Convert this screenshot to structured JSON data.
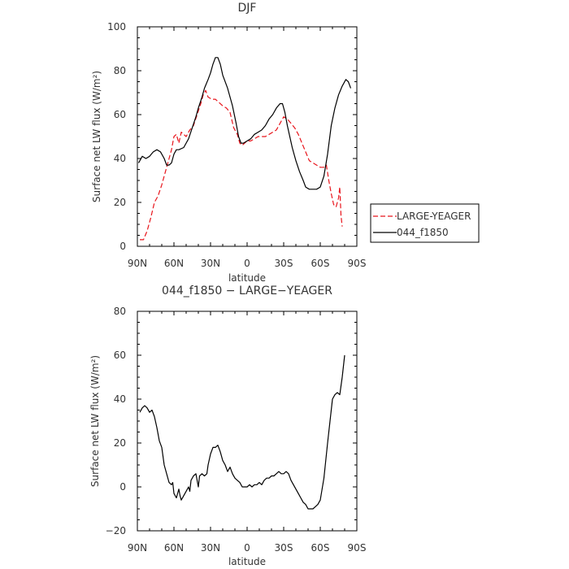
{
  "chart_data": [
    {
      "type": "line",
      "title": "DJF",
      "xlabel": "latitude",
      "ylabel": "Surface net LW flux (W/m²)",
      "ylim": [
        0,
        100
      ],
      "yticks": [
        "0",
        "20",
        "40",
        "60",
        "80",
        "100"
      ],
      "xlim": [
        90,
        -90
      ],
      "xticks": [
        {
          "v": 90,
          "label": "90N"
        },
        {
          "v": 60,
          "label": "60N"
        },
        {
          "v": 30,
          "label": "30N"
        },
        {
          "v": 0,
          "label": "0"
        },
        {
          "v": -30,
          "label": "30S"
        },
        {
          "v": -60,
          "label": "60S"
        },
        {
          "v": -90,
          "label": "90S"
        }
      ],
      "legend": {
        "placement": "right-outside"
      },
      "series": [
        {
          "name": "LARGE-YEAGER",
          "color": "#e8141b",
          "dash": "dashed",
          "points": [
            [
              88,
              3
            ],
            [
              85,
              3
            ],
            [
              82,
              7
            ],
            [
              79,
              13
            ],
            [
              76,
              20
            ],
            [
              73,
              23
            ],
            [
              70,
              28
            ],
            [
              67,
              34
            ],
            [
              64,
              40
            ],
            [
              62,
              44
            ],
            [
              60,
              50
            ],
            [
              58,
              51
            ],
            [
              56,
              47
            ],
            [
              54,
              52
            ],
            [
              52,
              51
            ],
            [
              50,
              50
            ],
            [
              47,
              53
            ],
            [
              44,
              55
            ],
            [
              41,
              60
            ],
            [
              38,
              65
            ],
            [
              36,
              69
            ],
            [
              34,
              71
            ],
            [
              32,
              68
            ],
            [
              29,
              67
            ],
            [
              26,
              67
            ],
            [
              24,
              66
            ],
            [
              20,
              64
            ],
            [
              17,
              63
            ],
            [
              14,
              61
            ],
            [
              11,
              54
            ],
            [
              8,
              51
            ],
            [
              6,
              47
            ],
            [
              4,
              46
            ],
            [
              2,
              47
            ],
            [
              0,
              48
            ],
            [
              -3,
              48
            ],
            [
              -6,
              49
            ],
            [
              -9,
              50
            ],
            [
              -12,
              50
            ],
            [
              -15,
              50
            ],
            [
              -18,
              51
            ],
            [
              -21,
              52
            ],
            [
              -24,
              53
            ],
            [
              -27,
              56
            ],
            [
              -30,
              59
            ],
            [
              -33,
              58
            ],
            [
              -36,
              56
            ],
            [
              -39,
              54
            ],
            [
              -42,
              51
            ],
            [
              -45,
              47
            ],
            [
              -48,
              43
            ],
            [
              -51,
              39
            ],
            [
              -54,
              38
            ],
            [
              -57,
              37
            ],
            [
              -60,
              36
            ],
            [
              -63,
              36
            ],
            [
              -65,
              37
            ],
            [
              -67,
              30
            ],
            [
              -69,
              24
            ],
            [
              -71,
              19
            ],
            [
              -73,
              18
            ],
            [
              -75,
              22
            ],
            [
              -76,
              27
            ],
            [
              -77,
              14
            ],
            [
              -78,
              9
            ]
          ]
        },
        {
          "name": "044_f1850",
          "color": "#000000",
          "dash": "solid",
          "points": [
            [
              89,
              38
            ],
            [
              86,
              41
            ],
            [
              83,
              40
            ],
            [
              80,
              41
            ],
            [
              77,
              43
            ],
            [
              74,
              44
            ],
            [
              71,
              43
            ],
            [
              68,
              40
            ],
            [
              66,
              37
            ],
            [
              64,
              37
            ],
            [
              62,
              38
            ],
            [
              60,
              42
            ],
            [
              58,
              44
            ],
            [
              56,
              44
            ],
            [
              52,
              45
            ],
            [
              48,
              49
            ],
            [
              45,
              54
            ],
            [
              42,
              59
            ],
            [
              40,
              63
            ],
            [
              37,
              68
            ],
            [
              35,
              72
            ],
            [
              32,
              76
            ],
            [
              30,
              79
            ],
            [
              28,
              83
            ],
            [
              26,
              86
            ],
            [
              24,
              86
            ],
            [
              22,
              83
            ],
            [
              20,
              78
            ],
            [
              16,
              72
            ],
            [
              12,
              64
            ],
            [
              9,
              56
            ],
            [
              7,
              50
            ],
            [
              5,
              47
            ],
            [
              3,
              47
            ],
            [
              0,
              48
            ],
            [
              -3,
              49
            ],
            [
              -6,
              51
            ],
            [
              -9,
              52
            ],
            [
              -12,
              53
            ],
            [
              -15,
              55
            ],
            [
              -18,
              58
            ],
            [
              -21,
              60
            ],
            [
              -24,
              63
            ],
            [
              -27,
              65
            ],
            [
              -29,
              65
            ],
            [
              -31,
              61
            ],
            [
              -33,
              55
            ],
            [
              -35,
              50
            ],
            [
              -37,
              45
            ],
            [
              -40,
              39
            ],
            [
              -43,
              34
            ],
            [
              -46,
              30
            ],
            [
              -48,
              27
            ],
            [
              -51,
              26
            ],
            [
              -54,
              26
            ],
            [
              -57,
              26
            ],
            [
              -60,
              27
            ],
            [
              -63,
              32
            ],
            [
              -66,
              42
            ],
            [
              -69,
              55
            ],
            [
              -72,
              63
            ],
            [
              -75,
              69
            ],
            [
              -78,
              73
            ],
            [
              -81,
              76
            ],
            [
              -83,
              75
            ],
            [
              -85,
              72
            ]
          ]
        }
      ]
    },
    {
      "type": "line",
      "title": "044_f1850 − LARGE−YEAGER",
      "xlabel": "latitude",
      "ylabel": "Surface net LW flux (W/m²)",
      "ylim": [
        -20,
        80
      ],
      "yticks": [
        "−20",
        "0",
        "20",
        "40",
        "60",
        "80"
      ],
      "xlim": [
        90,
        -90
      ],
      "xticks": [
        {
          "v": 90,
          "label": "90N"
        },
        {
          "v": 60,
          "label": "60N"
        },
        {
          "v": 30,
          "label": "30N"
        },
        {
          "v": 0,
          "label": "0"
        },
        {
          "v": -30,
          "label": "30S"
        },
        {
          "v": -60,
          "label": "60S"
        },
        {
          "v": -90,
          "label": "90S"
        }
      ],
      "series": [
        {
          "color": "#000000",
          "dash": "solid",
          "points": [
            [
              88,
              34
            ],
            [
              86,
              36
            ],
            [
              84,
              37
            ],
            [
              82,
              36
            ],
            [
              80,
              34
            ],
            [
              78,
              35
            ],
            [
              76,
              32
            ],
            [
              74,
              27
            ],
            [
              72,
              21
            ],
            [
              70,
              18
            ],
            [
              68,
              10
            ],
            [
              66,
              6
            ],
            [
              64,
              2
            ],
            [
              62,
              1
            ],
            [
              61,
              2
            ],
            [
              60,
              -3
            ],
            [
              58,
              -5
            ],
            [
              57,
              -3
            ],
            [
              56,
              -1
            ],
            [
              55,
              -4
            ],
            [
              54,
              -6
            ],
            [
              52,
              -4
            ],
            [
              50,
              -2
            ],
            [
              48,
              0
            ],
            [
              47,
              -2
            ],
            [
              46,
              3
            ],
            [
              44,
              5
            ],
            [
              42,
              6
            ],
            [
              41,
              3
            ],
            [
              40,
              0
            ],
            [
              39,
              5
            ],
            [
              37,
              6
            ],
            [
              35,
              5
            ],
            [
              33,
              6
            ],
            [
              32,
              10
            ],
            [
              30,
              15
            ],
            [
              28,
              18
            ],
            [
              26,
              18
            ],
            [
              24,
              19
            ],
            [
              22,
              16
            ],
            [
              20,
              12
            ],
            [
              18,
              10
            ],
            [
              16,
              7
            ],
            [
              14,
              9
            ],
            [
              12,
              6
            ],
            [
              10,
              4
            ],
            [
              8,
              3
            ],
            [
              6,
              2
            ],
            [
              4,
              0
            ],
            [
              2,
              0
            ],
            [
              0,
              0
            ],
            [
              -2,
              1
            ],
            [
              -4,
              0
            ],
            [
              -6,
              1
            ],
            [
              -8,
              1
            ],
            [
              -10,
              2
            ],
            [
              -12,
              1
            ],
            [
              -14,
              3
            ],
            [
              -16,
              4
            ],
            [
              -18,
              4
            ],
            [
              -20,
              5
            ],
            [
              -22,
              5
            ],
            [
              -24,
              6
            ],
            [
              -26,
              7
            ],
            [
              -28,
              6
            ],
            [
              -30,
              6
            ],
            [
              -32,
              7
            ],
            [
              -34,
              6
            ],
            [
              -36,
              3
            ],
            [
              -38,
              1
            ],
            [
              -40,
              -1
            ],
            [
              -42,
              -3
            ],
            [
              -44,
              -5
            ],
            [
              -46,
              -7
            ],
            [
              -48,
              -8
            ],
            [
              -50,
              -10
            ],
            [
              -52,
              -10
            ],
            [
              -54,
              -10
            ],
            [
              -56,
              -9
            ],
            [
              -58,
              -8
            ],
            [
              -60,
              -6
            ],
            [
              -63,
              4
            ],
            [
              -66,
              20
            ],
            [
              -68,
              30
            ],
            [
              -70,
              40
            ],
            [
              -72,
              42
            ],
            [
              -74,
              43
            ],
            [
              -76,
              42
            ],
            [
              -78,
              50
            ],
            [
              -80,
              60
            ]
          ]
        }
      ]
    }
  ]
}
